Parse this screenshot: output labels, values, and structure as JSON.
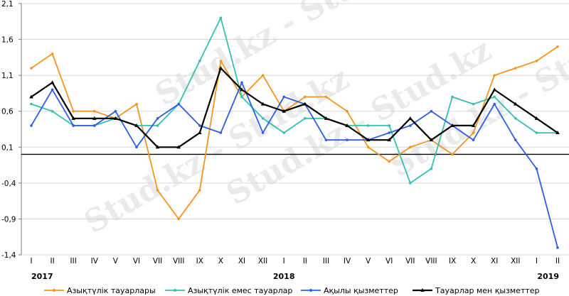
{
  "chart_data": {
    "type": "line",
    "categories": [
      "I",
      "II",
      "III",
      "IV",
      "V",
      "VI",
      "VII",
      "VIII",
      "IX",
      "X",
      "XI",
      "XII",
      "I",
      "II",
      "III",
      "IV",
      "V",
      "VI",
      "VII",
      "VIII",
      "IX",
      "X",
      "XI",
      "XII",
      "I",
      "II"
    ],
    "year_labels": [
      {
        "label": "2017",
        "index": 0
      },
      {
        "label": "2018",
        "index": 12
      },
      {
        "label": "2019",
        "index": 25
      }
    ],
    "y_ticks": [
      "2,1",
      "1,6",
      "1,1",
      "0,6",
      "0,1",
      "-0,4",
      "-0,9",
      "-1,4"
    ],
    "y_tick_values": [
      2.1,
      1.6,
      1.1,
      0.6,
      0.1,
      -0.4,
      -0.9,
      -1.4
    ],
    "ylim": [
      -1.4,
      2.1
    ],
    "baseline": 0,
    "grid": true,
    "legend_position": "bottom",
    "series": [
      {
        "name": "Азықтүлік тауарлары",
        "color": "#f7941d",
        "values": [
          1.2,
          1.4,
          0.6,
          0.6,
          0.5,
          0.7,
          -0.5,
          -0.9,
          -0.5,
          1.3,
          0.8,
          1.1,
          0.6,
          0.8,
          0.8,
          0.6,
          0.1,
          -0.1,
          0.1,
          0.2,
          0.0,
          0.3,
          1.1,
          1.2,
          1.3,
          1.5
        ]
      },
      {
        "name": "Азықтүлік емес тауарлар",
        "color": "#33c1b1",
        "values": [
          0.7,
          0.6,
          0.4,
          0.4,
          0.5,
          0.4,
          0.4,
          0.7,
          1.3,
          1.9,
          0.8,
          0.5,
          0.3,
          0.5,
          0.5,
          0.4,
          0.4,
          0.4,
          -0.4,
          -0.2,
          0.8,
          0.7,
          0.8,
          0.5,
          0.3,
          0.3
        ]
      },
      {
        "name": "Ақылы қызметтер",
        "color": "#2f5de6",
        "values": [
          0.4,
          0.9,
          0.4,
          0.4,
          0.6,
          0.1,
          0.5,
          0.7,
          0.4,
          0.3,
          1.0,
          0.3,
          0.8,
          0.7,
          0.2,
          0.2,
          0.2,
          0.3,
          0.4,
          0.6,
          0.4,
          0.2,
          0.7,
          0.2,
          -0.2,
          -1.3
        ]
      },
      {
        "name": "Тауарлар мен қызметтер",
        "color": "#000000",
        "values": [
          0.8,
          1.0,
          0.5,
          0.5,
          0.5,
          0.4,
          0.1,
          0.1,
          0.3,
          1.2,
          0.9,
          0.7,
          0.6,
          0.7,
          0.5,
          0.4,
          0.2,
          0.2,
          0.5,
          0.2,
          0.4,
          0.4,
          0.9,
          0.7,
          0.5,
          0.3
        ]
      }
    ]
  },
  "watermark": {
    "text": "Stud.kz - Stud.kz"
  }
}
